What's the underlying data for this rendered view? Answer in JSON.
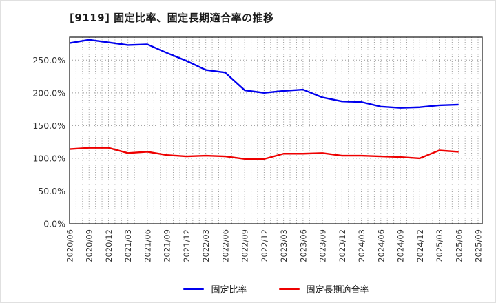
{
  "chart_data": {
    "type": "line",
    "title": "[9119]  固定比率、固定長期適合率の推移",
    "categories": [
      "2020/06",
      "2020/09",
      "2020/12",
      "2021/03",
      "2021/06",
      "2021/09",
      "2021/12",
      "2022/03",
      "2022/06",
      "2022/09",
      "2022/12",
      "2023/03",
      "2023/06",
      "2023/09",
      "2023/12",
      "2024/03",
      "2024/06",
      "2024/09",
      "2024/12",
      "2025/03",
      "2025/06",
      "2025/09"
    ],
    "series": [
      {
        "name": "固定比率",
        "color": "#0000ee",
        "values": [
          276,
          281,
          277,
          273,
          274,
          261,
          249,
          235,
          231,
          204,
          200,
          203,
          205,
          193,
          187,
          186,
          179,
          177,
          178,
          181,
          182,
          null
        ]
      },
      {
        "name": "固定長期適合率",
        "color": "#ee0000",
        "values": [
          114,
          116,
          116,
          108,
          110,
          105,
          103,
          104,
          103,
          99,
          99,
          107,
          107,
          108,
          104,
          104,
          103,
          102,
          100,
          112,
          110,
          null
        ]
      }
    ],
    "y_ticks": [
      {
        "value": 0,
        "label": "0.0%"
      },
      {
        "value": 50,
        "label": "50.0%"
      },
      {
        "value": 100,
        "label": "100.0%"
      },
      {
        "value": 150,
        "label": "150.0%"
      },
      {
        "value": 200,
        "label": "200.0%"
      },
      {
        "value": 250,
        "label": "250.0%"
      }
    ],
    "ylim": [
      0,
      285
    ],
    "grid": true,
    "legend_position": "bottom",
    "axis_color": "#262626",
    "grid_color": "#999999",
    "tick_label_color": "#333333"
  }
}
